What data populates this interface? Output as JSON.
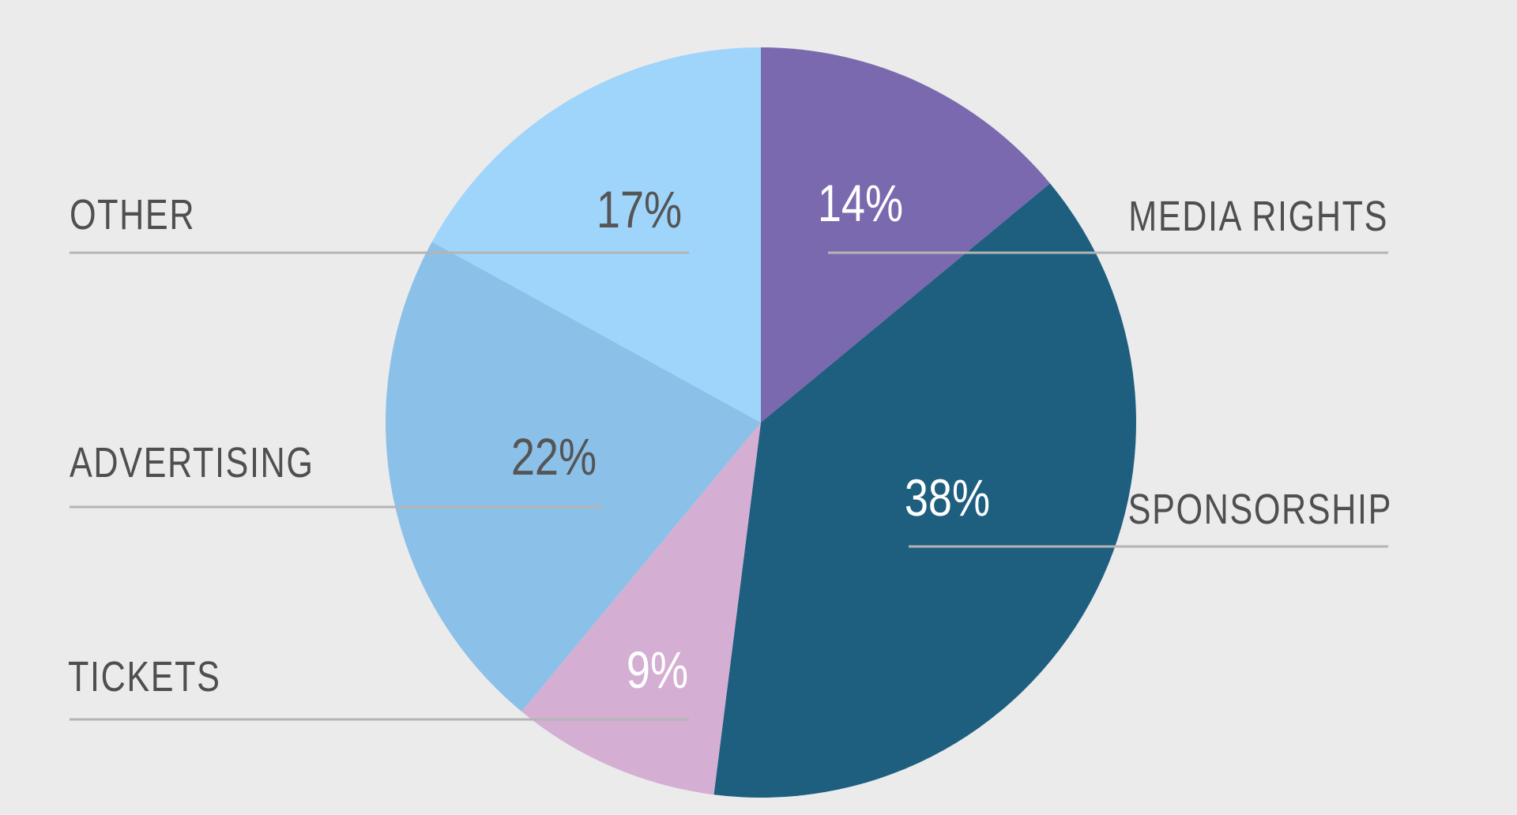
{
  "colors": {
    "background": "#ebebeb",
    "leader_line": "#b4b4b4",
    "category_text": "#4f4f4f"
  },
  "chart_data": {
    "type": "pie",
    "start": "12 o'clock, clockwise",
    "slices": [
      {
        "label": "MEDIA RIGHTS",
        "value": 14,
        "value_label": "14%",
        "color": "#7a69ae",
        "value_label_color": "#ffffff"
      },
      {
        "label": "SPONSORSHIP",
        "value": 38,
        "value_label": "38%",
        "color": "#1e5f80",
        "value_label_color": "#ffffff"
      },
      {
        "label": "TICKETS",
        "value": 9,
        "value_label": "9%",
        "color": "#d4afd3",
        "value_label_color": "#ffffff"
      },
      {
        "label": "ADVERTISING",
        "value": 22,
        "value_label": "22%",
        "color": "#8bc1e8",
        "value_label_color": "#555555"
      },
      {
        "label": "OTHER",
        "value": 17,
        "value_label": "17%",
        "color": "#9fd5fb",
        "value_label_color": "#555555"
      }
    ]
  }
}
